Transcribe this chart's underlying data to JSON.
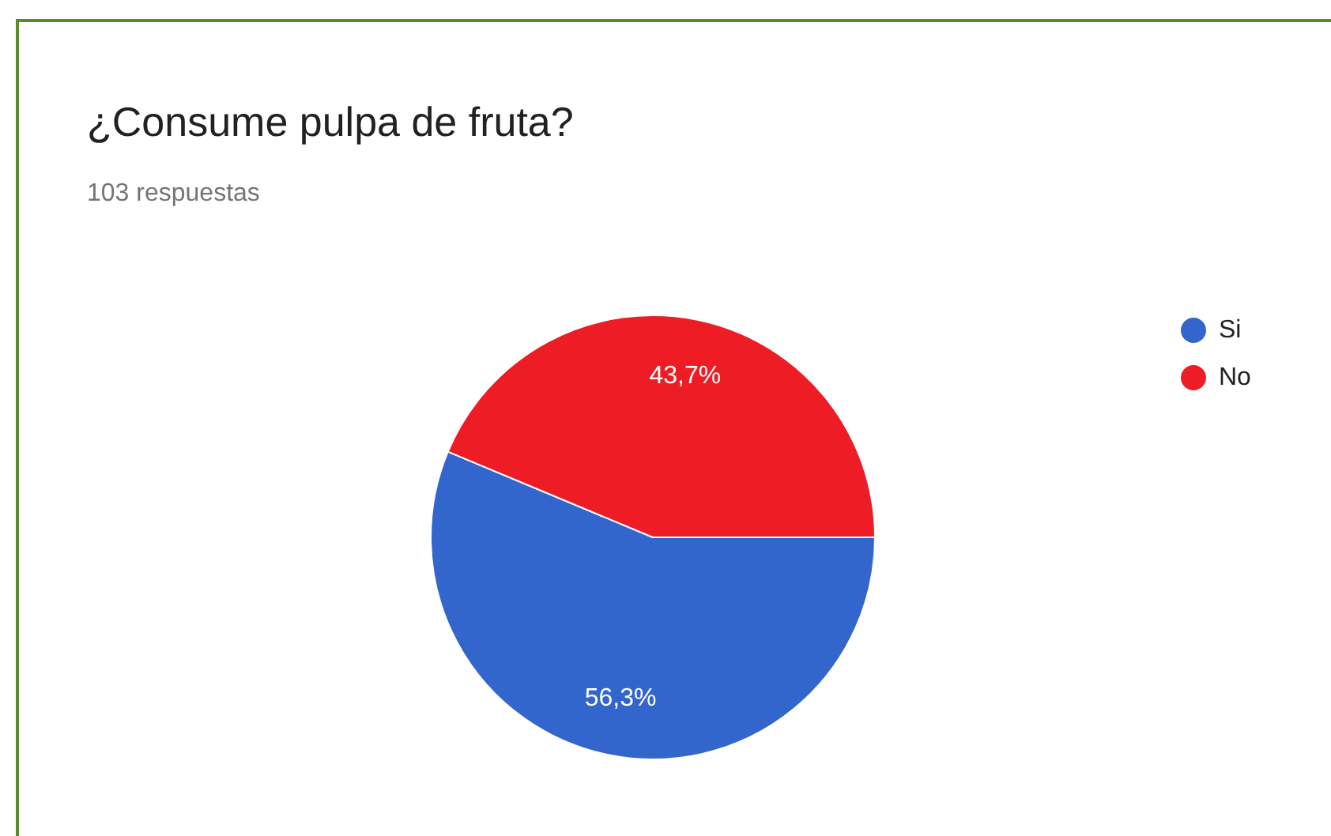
{
  "chart_data": {
    "type": "pie",
    "title": "¿Consume pulpa de fruta?",
    "subtitle": "103 respuestas",
    "categories": [
      "Si",
      "No"
    ],
    "values": [
      56.3,
      43.7
    ],
    "colors": [
      "#3366cc",
      "#ee1c25"
    ],
    "value_labels": [
      "56,3%",
      "43,7%"
    ],
    "legend": "top right"
  }
}
